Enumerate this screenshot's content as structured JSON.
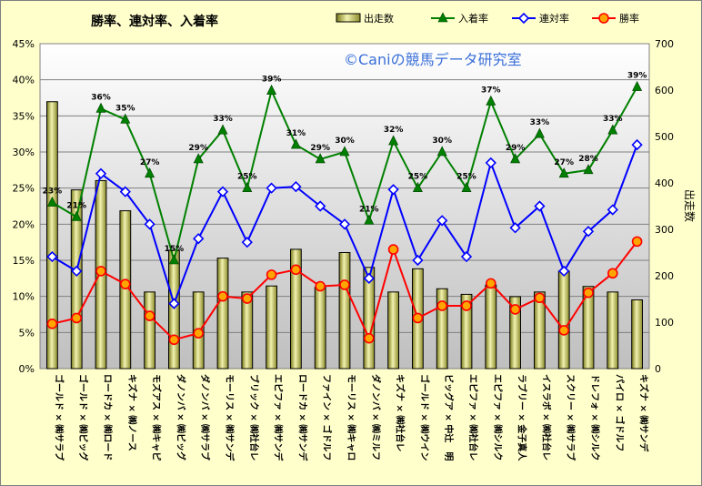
{
  "chart_data": {
    "type": "bar",
    "title": "勝率、連対率、入着率",
    "watermark": "©Caniの競馬データ研究室",
    "xlabel": "",
    "ylabel": "",
    "y2label": "出走数",
    "ylim": [
      0,
      45
    ],
    "y2lim": [
      0,
      700
    ],
    "yticks": [
      "0%",
      "5%",
      "10%",
      "15%",
      "20%",
      "25%",
      "30%",
      "35%",
      "40%",
      "45%"
    ],
    "y2ticks": [
      "0",
      "100",
      "200",
      "300",
      "400",
      "500",
      "600",
      "700"
    ],
    "legend_position": "top-right",
    "grid": true,
    "categories": [
      "ゴールド × ㈱サラブ",
      "ゴールド × ㈱ビッグ",
      "ロードカ × ㈱ロード",
      "キズナ × ㈱ノース",
      "モズアス × ㈱キャピ",
      "ダノンバ × ㈱ビッグ",
      "ダノンバ × ㈱サラブ",
      "モーリス × ㈱サンデ",
      "ブリック × ㈱社台レ",
      "エピファ × ㈱サンデ",
      "ロードカ × ㈱サンデ",
      "ファイン × ゴドルフ",
      "モーリス × ㈱キャロ",
      "ダノンバ × ㈱ミルフ",
      "キズナ × ㈱社台レ",
      "ゴールド × ㈱ウイン",
      "ビッグア × 中辻　明",
      "エピファ × ㈱社台レ",
      "エピファ × ㈱シルク",
      "ラブリー × 金子真人",
      "イスラボ × ㈱社台レ",
      "スクリー × ㈱サラブ",
      "ドレフォ × ㈱シルク",
      "パイロ × ゴドルフ",
      "キズナ × ㈱サンデ"
    ],
    "series": [
      {
        "name": "出走数",
        "kind": "bar",
        "axis": "right",
        "color": "#cccc66",
        "values": [
          575,
          385,
          405,
          340,
          165,
          255,
          165,
          238,
          165,
          178,
          257,
          175,
          250,
          218,
          165,
          215,
          172,
          160,
          180,
          155,
          165,
          210,
          177,
          165,
          148
        ]
      },
      {
        "name": "入着率",
        "kind": "line",
        "axis": "left",
        "color": "#008000",
        "marker": "triangle",
        "values": [
          23.0,
          21.0,
          36.0,
          34.5,
          27.0,
          15.0,
          29.0,
          33.0,
          25.0,
          38.5,
          31.0,
          29.0,
          30.0,
          20.5,
          31.5,
          25.0,
          30.0,
          25.0,
          37.0,
          29.0,
          32.5,
          27.0,
          27.5,
          33.0,
          39.0
        ],
        "data_labels": [
          "23%",
          "21%",
          "36%",
          "35%",
          "27%",
          "15%",
          "29%",
          "33%",
          "25%",
          "39%",
          "31%",
          "29%",
          "30%",
          "21%",
          "32%",
          "25%",
          "30%",
          "25%",
          "37%",
          "29%",
          "33%",
          "27%",
          "28%",
          "33%",
          "39%"
        ]
      },
      {
        "name": "連対率",
        "kind": "line",
        "axis": "left",
        "color": "#0000ff",
        "marker": "diamond",
        "values": [
          15.5,
          13.5,
          27.0,
          24.5,
          20.0,
          9.0,
          18.0,
          24.5,
          17.5,
          25.0,
          25.2,
          22.5,
          20.0,
          12.5,
          24.8,
          15.0,
          20.5,
          15.5,
          28.5,
          19.5,
          22.5,
          13.5,
          19.0,
          22.0,
          31.0
        ]
      },
      {
        "name": "勝率",
        "kind": "line",
        "axis": "left",
        "color": "#ff0000",
        "marker": "circle",
        "values": [
          6.2,
          7.0,
          13.5,
          11.7,
          7.3,
          4.0,
          4.9,
          10.0,
          9.7,
          13.0,
          13.7,
          11.4,
          11.6,
          4.2,
          16.5,
          7.0,
          8.7,
          8.7,
          11.8,
          8.2,
          9.8,
          5.3,
          10.5,
          13.2,
          17.6
        ]
      }
    ]
  }
}
